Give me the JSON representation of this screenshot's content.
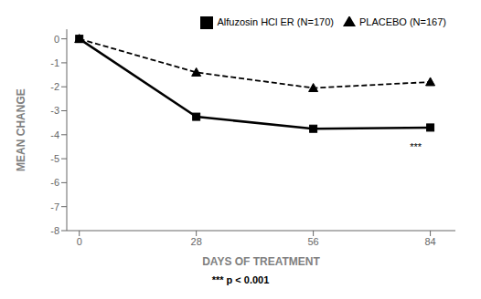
{
  "chart_data": {
    "type": "line",
    "x": [
      0,
      28,
      56,
      84
    ],
    "series": [
      {
        "name": "PLACEBO (N=167)",
        "color": "#000000",
        "values": [
          0,
          -1.4,
          -2.05,
          -1.8
        ],
        "line_style": "dashed",
        "marker": "triangle"
      },
      {
        "name": "Alfuzosin HCl ER (N=170)",
        "color": "#000000",
        "values": [
          0,
          -3.25,
          -3.75,
          -3.7
        ],
        "line_style": "solid",
        "marker": "square"
      }
    ],
    "xlabel": "DAYS OF TREATMENT",
    "ylabel": "MEAN CHANGE",
    "xlim": [
      -3,
      90
    ],
    "ylim": [
      -8,
      0.4
    ],
    "xticks": [
      0,
      28,
      56,
      84
    ],
    "yticks": [
      0,
      -1,
      -2,
      -3,
      -4,
      -5,
      -6,
      -7,
      -8
    ],
    "annotations": [
      {
        "text": "***",
        "x": 83,
        "y": -4.5
      },
      {
        "text": "***  p < 0.001"
      }
    ],
    "legend": "upper right",
    "grid": false
  }
}
